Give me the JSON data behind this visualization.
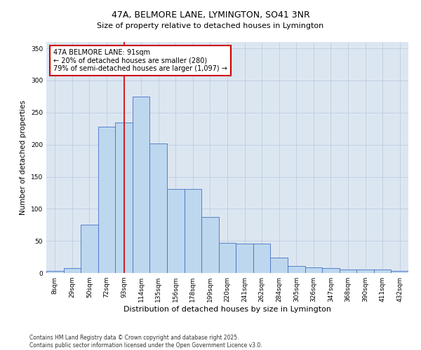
{
  "title": "47A, BELMORE LANE, LYMINGTON, SO41 3NR",
  "subtitle": "Size of property relative to detached houses in Lymington",
  "xlabel": "Distribution of detached houses by size in Lymington",
  "ylabel": "Number of detached properties",
  "categories": [
    "8sqm",
    "29sqm",
    "50sqm",
    "72sqm",
    "93sqm",
    "114sqm",
    "135sqm",
    "156sqm",
    "178sqm",
    "199sqm",
    "220sqm",
    "241sqm",
    "262sqm",
    "284sqm",
    "305sqm",
    "326sqm",
    "347sqm",
    "368sqm",
    "390sqm",
    "411sqm",
    "432sqm"
  ],
  "values": [
    3,
    8,
    75,
    228,
    235,
    275,
    202,
    131,
    131,
    87,
    47,
    46,
    46,
    24,
    11,
    9,
    8,
    5,
    5,
    6,
    3
  ],
  "bar_color": "#bdd7ee",
  "bar_edge_color": "#4472c4",
  "vline_x": 4.0,
  "vline_color": "#cc0000",
  "annotation_title": "47A BELMORE LANE: 91sqm",
  "annotation_line1": "← 20% of detached houses are smaller (280)",
  "annotation_line2": "79% of semi-detached houses are larger (1,097) →",
  "annotation_box_color": "#ffffff",
  "annotation_box_edge": "#cc0000",
  "ylim": [
    0,
    360
  ],
  "yticks": [
    0,
    50,
    100,
    150,
    200,
    250,
    300,
    350
  ],
  "bg_color": "#dce6f1",
  "grid_color": "#b8c8dc",
  "footer1": "Contains HM Land Registry data © Crown copyright and database right 2025.",
  "footer2": "Contains public sector information licensed under the Open Government Licence v3.0.",
  "title_fontsize": 9,
  "subtitle_fontsize": 8,
  "tick_fontsize": 6.5,
  "ylabel_fontsize": 7.5,
  "xlabel_fontsize": 8,
  "annotation_fontsize": 7,
  "footer_fontsize": 5.5
}
